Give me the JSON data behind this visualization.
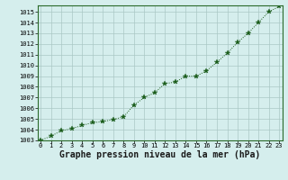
{
  "x": [
    0,
    1,
    2,
    3,
    4,
    5,
    6,
    7,
    8,
    9,
    10,
    11,
    12,
    13,
    14,
    15,
    16,
    17,
    18,
    19,
    20,
    21,
    22,
    23
  ],
  "y": [
    1003.0,
    1003.4,
    1003.9,
    1004.1,
    1004.4,
    1004.65,
    1004.75,
    1004.95,
    1005.2,
    1006.3,
    1007.0,
    1007.45,
    1008.3,
    1008.45,
    1009.0,
    1009.0,
    1009.5,
    1010.3,
    1011.15,
    1012.15,
    1013.0,
    1014.0,
    1015.0,
    1015.5
  ],
  "ylim": [
    1003,
    1015.6
  ],
  "yticks": [
    1003,
    1004,
    1005,
    1006,
    1007,
    1008,
    1009,
    1010,
    1011,
    1012,
    1013,
    1014,
    1015
  ],
  "xtick_labels": [
    "0",
    "1",
    "2",
    "3",
    "4",
    "5",
    "6",
    "7",
    "8",
    "9",
    "10",
    "11",
    "12",
    "13",
    "14",
    "15",
    "16",
    "17",
    "18",
    "19",
    "20",
    "21",
    "22",
    "23"
  ],
  "xlabel": "Graphe pression niveau de la mer (hPa)",
  "line_color": "#1a5c1a",
  "marker": "*",
  "marker_size": 4,
  "bg_color": "#d5eeed",
  "grid_color": "#aac8c5",
  "tick_fontsize": 5,
  "xlabel_fontsize": 7,
  "xlabel_bold": true,
  "xlim": [
    -0.3,
    23.3
  ]
}
